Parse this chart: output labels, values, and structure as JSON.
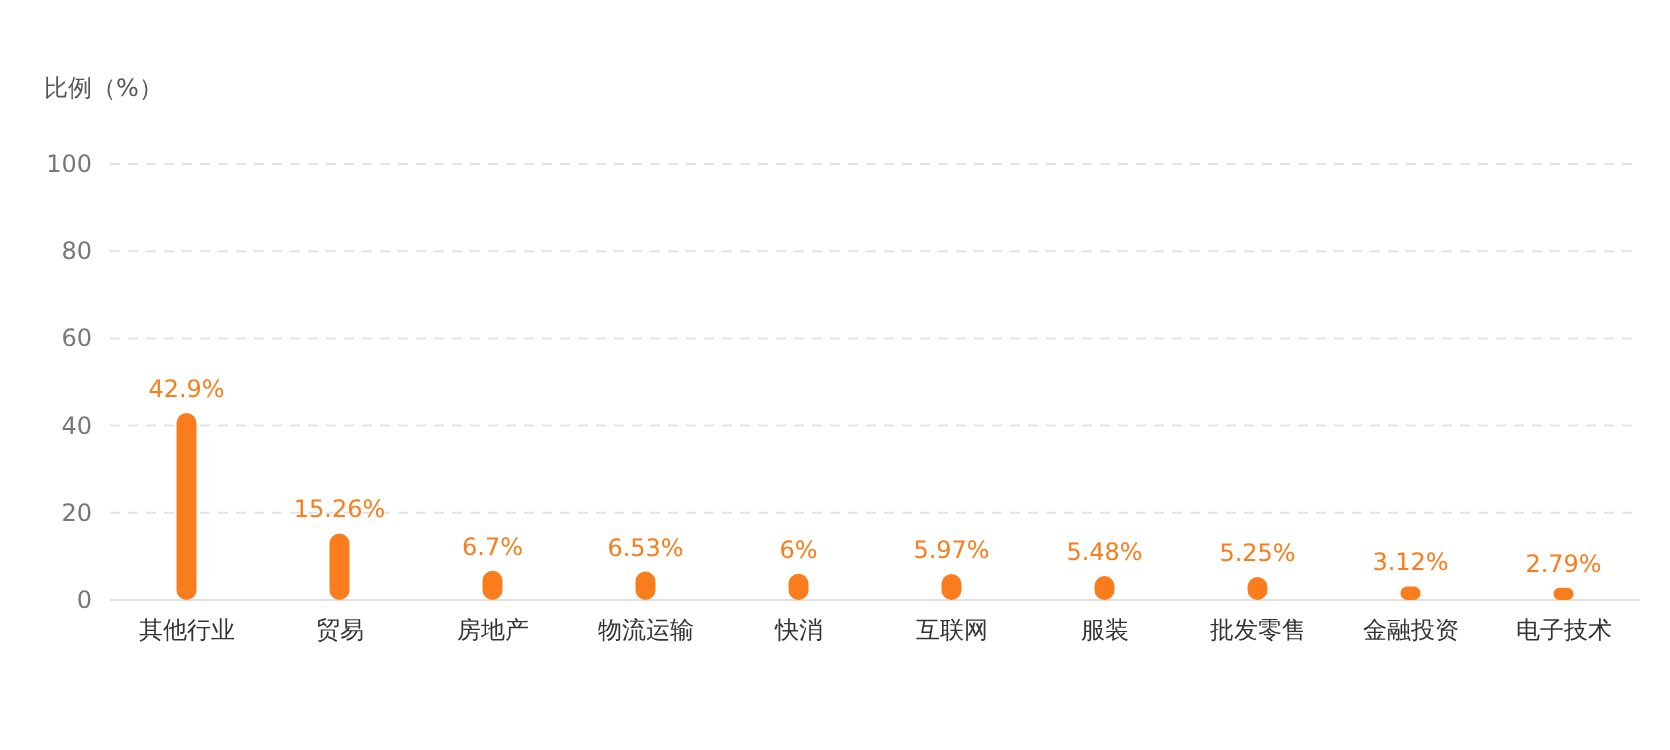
{
  "chart_data": {
    "type": "bar",
    "ylabel": "比例（%）",
    "categories": [
      "其他行业",
      "贸易",
      "房地产",
      "物流运输",
      "快消",
      "互联网",
      "服装",
      "批发零售",
      "金融投资",
      "电子技术"
    ],
    "values": [
      42.9,
      15.26,
      6.7,
      6.53,
      6,
      5.97,
      5.48,
      5.25,
      3.12,
      2.79
    ],
    "value_labels": [
      "42.9%",
      "15.26%",
      "6.7%",
      "6.53%",
      "6%",
      "5.97%",
      "5.48%",
      "5.25%",
      "3.12%",
      "2.79%"
    ],
    "color": "#f97d1c",
    "ylim": [
      0,
      100
    ],
    "yticks": [
      0,
      20,
      40,
      60,
      80,
      100
    ],
    "grid": "y"
  }
}
